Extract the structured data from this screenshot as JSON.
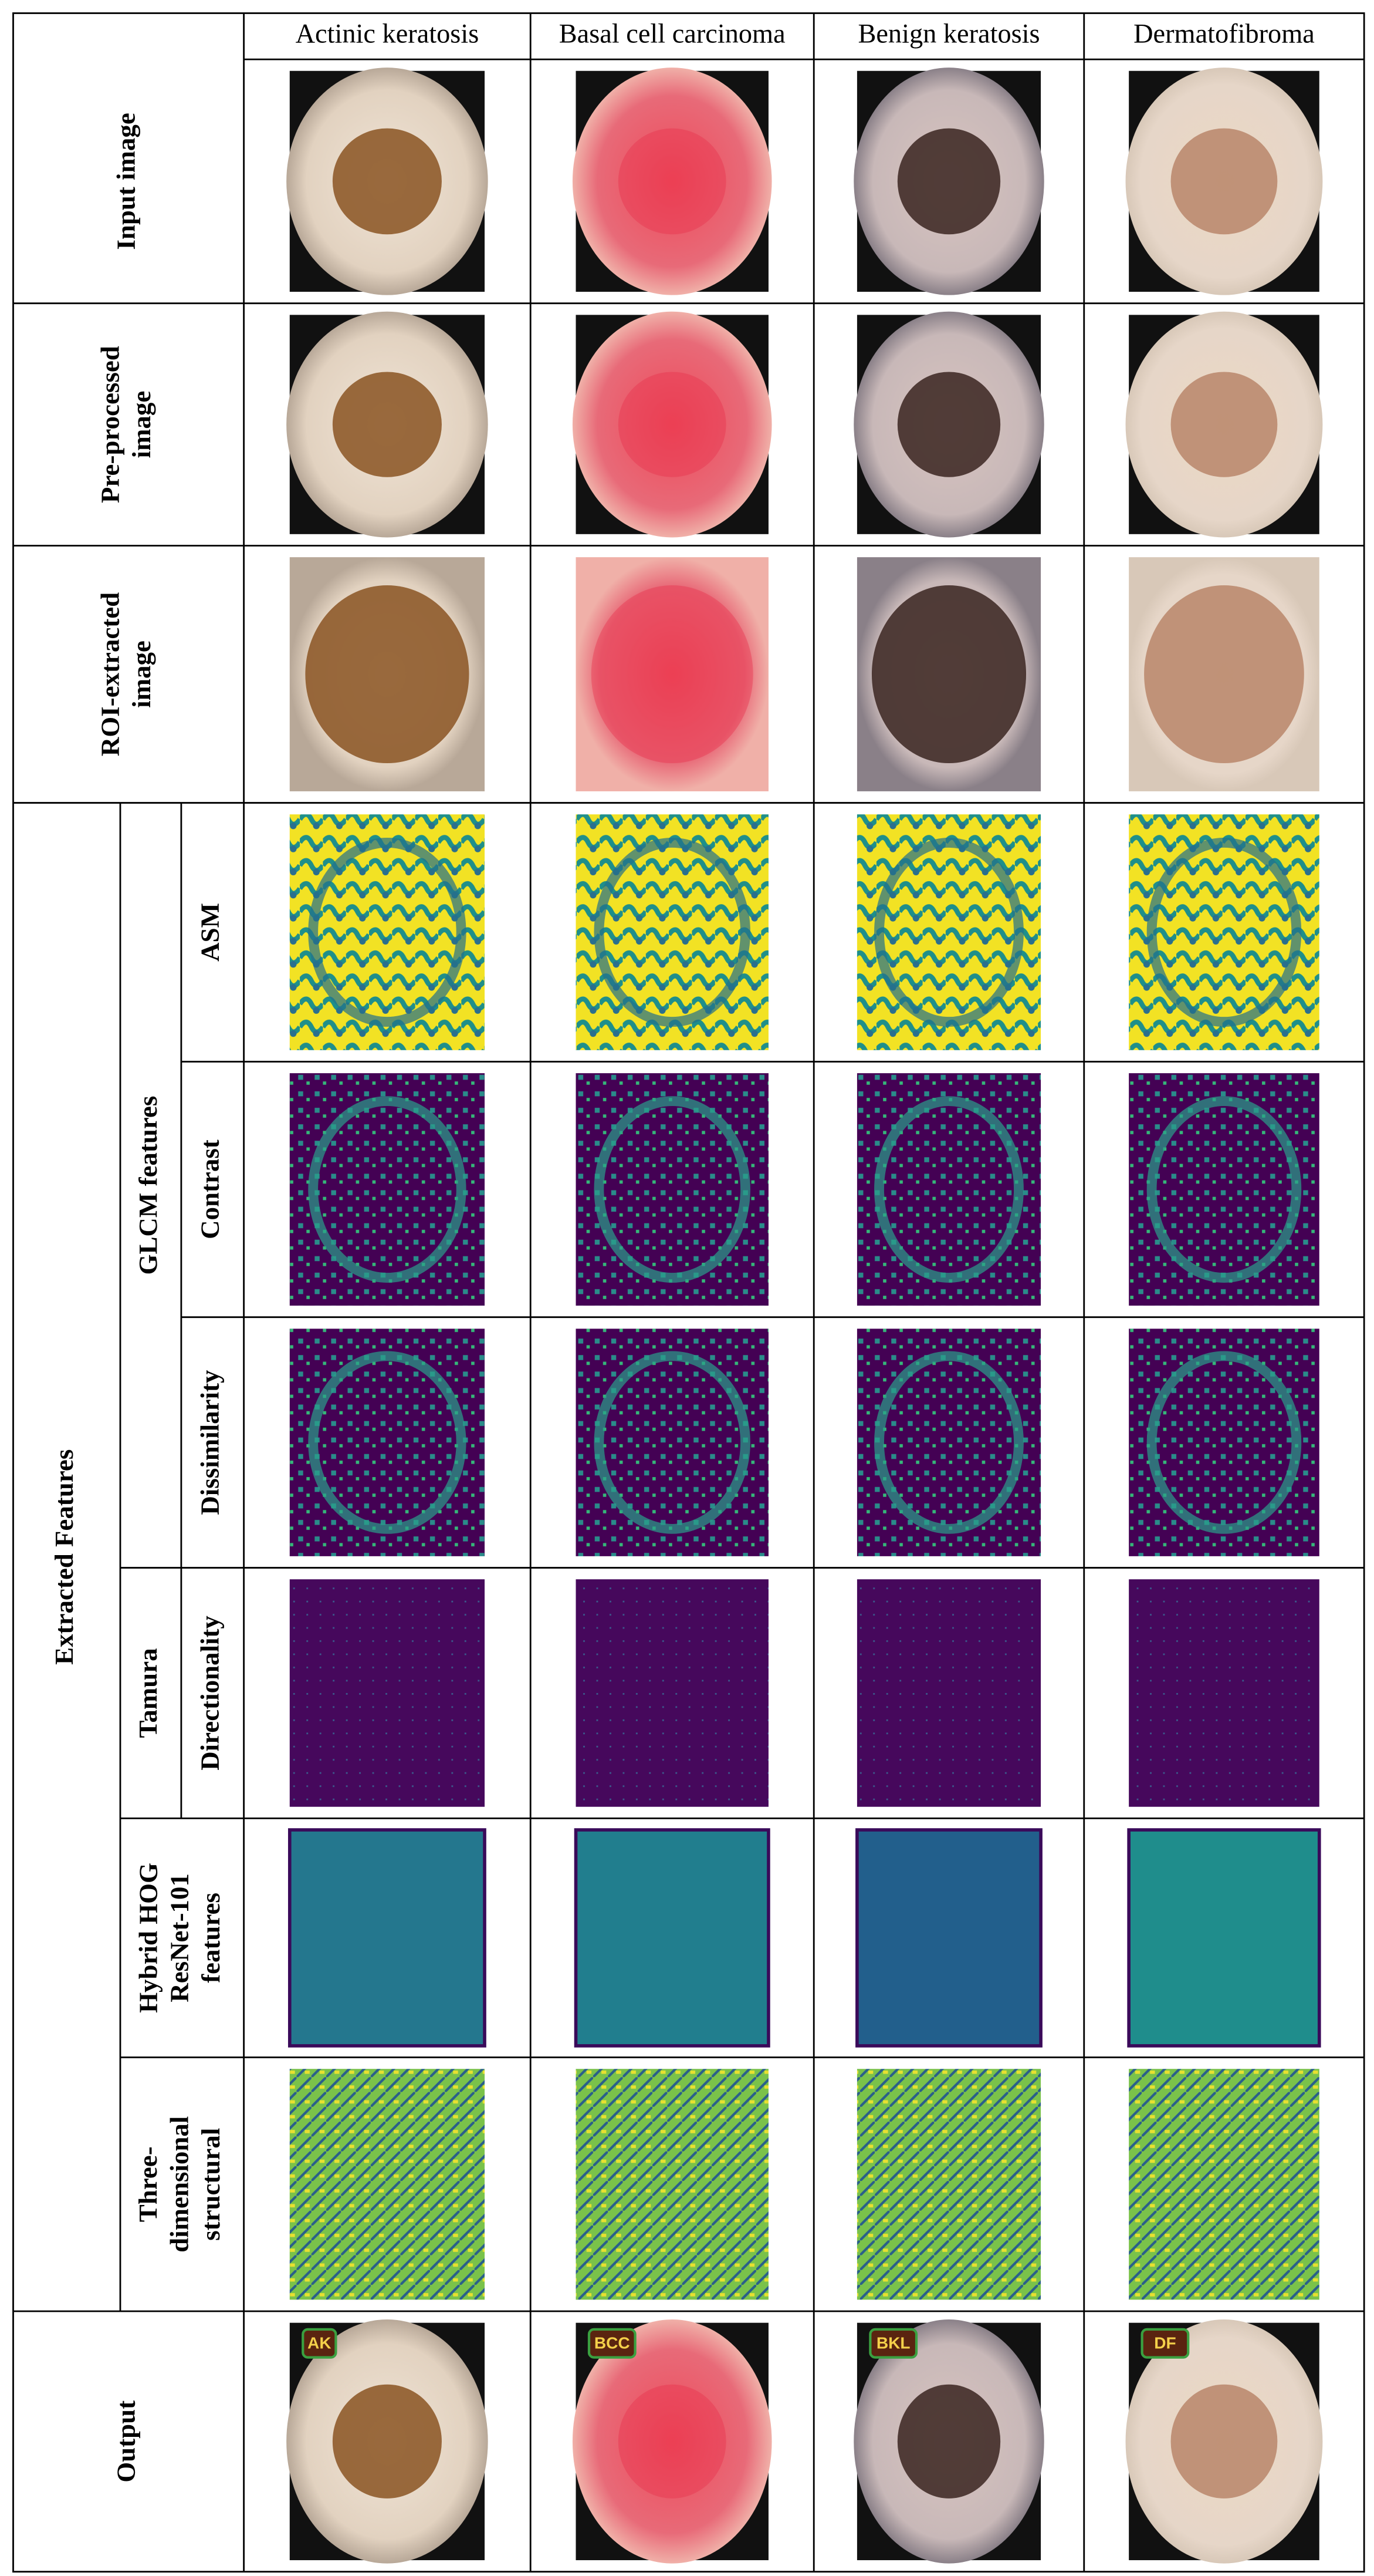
{
  "header": {
    "columns": [
      "Actinic keratosis",
      "Basal cell carcinoma",
      "Benign keratosis",
      "Dermatofibroma"
    ]
  },
  "rows": [
    {
      "label": [
        "Input image"
      ]
    },
    {
      "label": [
        "Pre-processed",
        "image"
      ]
    },
    {
      "label": [
        "ROI-extracted",
        "image"
      ]
    }
  ],
  "features": {
    "group": "Extracted Features",
    "glcm": {
      "label": "GLCM features",
      "rows": [
        "ASM",
        "Contrast",
        "Dissimilarity"
      ]
    },
    "tamura": {
      "label": "Tamura",
      "rows": [
        "Directionality"
      ]
    },
    "hybrid": {
      "label": [
        "Hybrid HOG",
        "ResNet-101",
        "features"
      ]
    },
    "structural": {
      "label": [
        "Three-",
        "dimensional",
        "structural"
      ]
    }
  },
  "output": {
    "label": "Output",
    "classes": [
      "AK",
      "BCC",
      "BKL",
      "DF"
    ]
  }
}
